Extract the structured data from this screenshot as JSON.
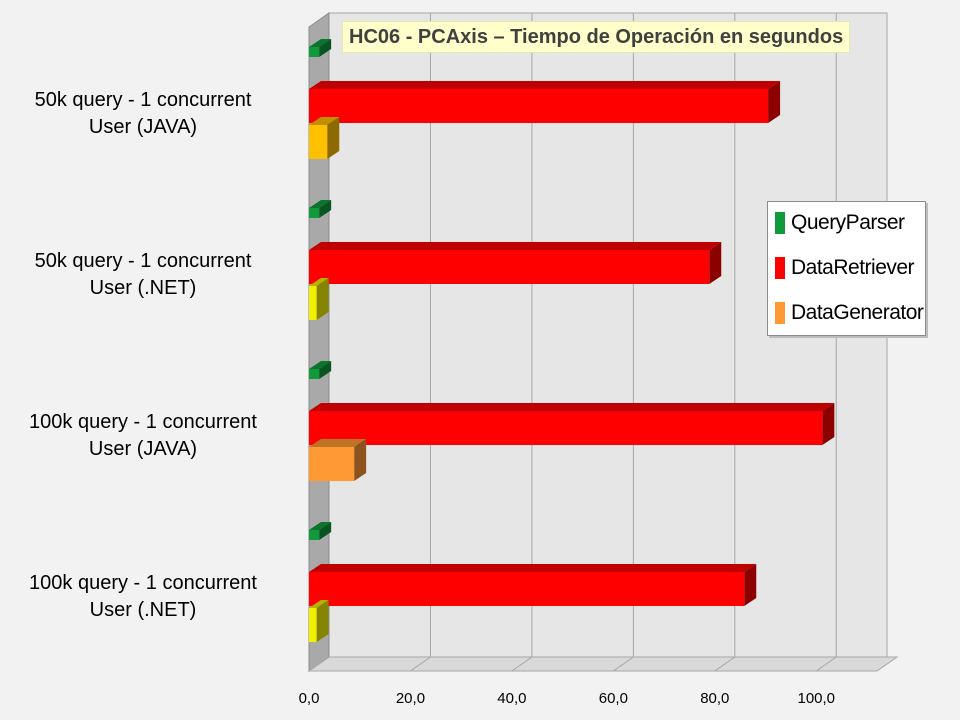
{
  "chart_data": {
    "type": "bar",
    "orientation": "horizontal",
    "three_d": true,
    "title": "HC06 - PCAxis – Tiempo de Operación en segundos",
    "categories": [
      [
        "50k query - 1 concurrent",
        "User (JAVA)"
      ],
      [
        "50k query - 1 concurrent",
        "User (.NET)"
      ],
      [
        "100k query - 1 concurrent",
        "User (JAVA)"
      ],
      [
        "100k query - 1 concurrent",
        "User (.NET)"
      ]
    ],
    "series": [
      {
        "name": "QueryParser",
        "color": "#119a3c",
        "values": [
          2.0,
          2.0,
          2.0,
          2.0
        ]
      },
      {
        "name": "DataRetriever",
        "color": "#ff0000",
        "values": [
          90.5,
          78.9,
          101.2,
          85.8
        ]
      },
      {
        "name": "DataGenerator",
        "color": "#ff9933",
        "values": [
          3.6,
          1.5,
          8.9,
          1.5
        ],
        "point_colors": [
          "#ffc000",
          "#f0f000",
          "#ff9933",
          "#f0f000"
        ]
      }
    ],
    "xlim": [
      0,
      110
    ],
    "xticks": [
      0,
      20,
      40,
      60,
      80,
      100
    ],
    "xtick_labels": [
      "0,0",
      "20,0",
      "40,0",
      "60,0",
      "80,0",
      "100,0"
    ],
    "grid": true,
    "legend": "right"
  }
}
